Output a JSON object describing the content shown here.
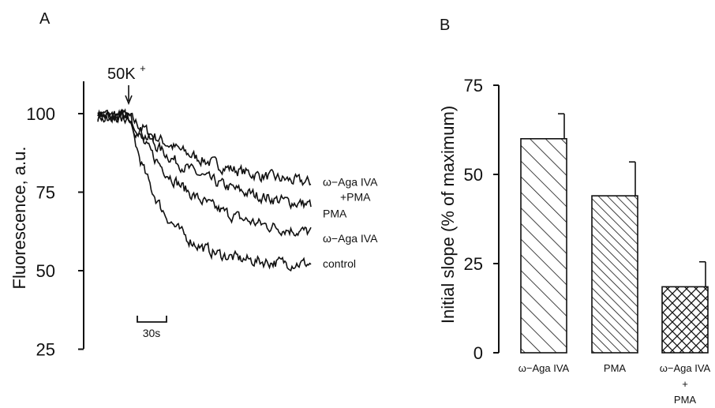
{
  "panels": {
    "a_label": "A",
    "b_label": "B"
  },
  "chart_data": [
    {
      "type": "line",
      "panel": "A",
      "ylabel": "Fluorescence, a.u.",
      "ylim": [
        25,
        110
      ],
      "yticks": [
        "100",
        "75",
        "50",
        "25"
      ],
      "stimulus_label": "50K",
      "stimulus_sup": "+",
      "scalebar_label": "30s",
      "scalebar_seconds": 30,
      "x_unit": "s",
      "stimulus_time_s": 0,
      "series": [
        {
          "name": "ω−Aga IVA +PMA",
          "label_lines": [
            "ω−Aga IVA",
            "+PMA"
          ],
          "baseline": 99,
          "end": 75,
          "tau_s": 90
        },
        {
          "name": "PMA",
          "label_lines": [
            "PMA"
          ],
          "baseline": 99,
          "end": 68,
          "tau_s": 80
        },
        {
          "name": "ω−Aga IVA",
          "label_lines": [
            "ω−Aga IVA"
          ],
          "baseline": 99,
          "end": 60,
          "tau_s": 65
        },
        {
          "name": "control",
          "label_lines": [
            "control"
          ],
          "baseline": 99,
          "end": 52,
          "tau_s": 35
        }
      ],
      "x_start_s": -12,
      "x_end_s": 250
    },
    {
      "type": "bar",
      "panel": "B",
      "ylabel": "Initial slope (% of maximum)",
      "ylim": [
        0,
        75
      ],
      "yticks": [
        "75",
        "50",
        "25",
        "0"
      ],
      "categories": [
        "ω−Aga IVA",
        "PMA",
        "ω−Aga IVA + PMA"
      ],
      "category_lines": [
        [
          "ω−Aga IVA"
        ],
        [
          "PMA"
        ],
        [
          "ω−Aga IVA",
          "+",
          "PMA"
        ]
      ],
      "values": [
        60,
        44,
        18.5
      ],
      "errors": [
        7,
        9.5,
        7
      ],
      "patterns": [
        "hatch-wide",
        "hatch-dense",
        "crosshatch"
      ]
    }
  ]
}
